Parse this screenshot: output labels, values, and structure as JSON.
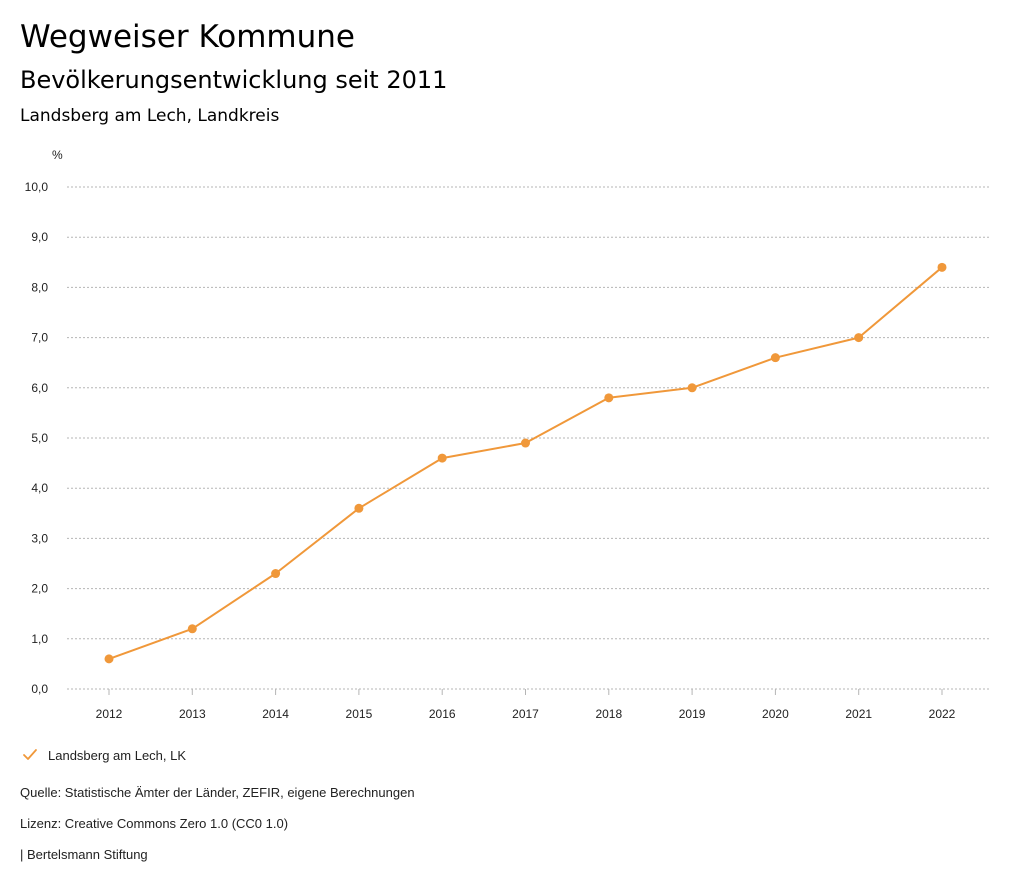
{
  "header": {
    "title": "Wegweiser Kommune",
    "subtitle": "Bevölkerungsentwicklung seit 2011",
    "region": "Landsberg am Lech, Landkreis"
  },
  "colors": {
    "series": "#f0983a",
    "gridline": "#b5b5b5",
    "axis_text": "#222222"
  },
  "chart_data": {
    "type": "line",
    "title": "Bevölkerungsentwicklung seit 2011",
    "ylabel": "%",
    "xlabel": "",
    "x": [
      "2012",
      "2013",
      "2014",
      "2015",
      "2016",
      "2017",
      "2018",
      "2019",
      "2020",
      "2021",
      "2022"
    ],
    "yticks": [
      "0,0",
      "1,0",
      "2,0",
      "3,0",
      "4,0",
      "5,0",
      "6,0",
      "7,0",
      "8,0",
      "9,0",
      "10,0"
    ],
    "ylim": [
      0,
      10
    ],
    "grid": true,
    "series": [
      {
        "name": "Landsberg am Lech, LK",
        "values": [
          0.6,
          1.2,
          2.3,
          3.6,
          4.6,
          4.9,
          5.8,
          6.0,
          6.6,
          7.0,
          8.4
        ]
      }
    ]
  },
  "legend": {
    "items": [
      {
        "label": "Landsberg am Lech, LK",
        "icon": "check-icon"
      }
    ]
  },
  "footer": {
    "source": "Quelle: Statistische Ämter der Länder, ZEFIR, eigene Berechnungen",
    "license": "Lizenz: Creative Commons Zero 1.0 (CC0 1.0)",
    "publisher": "| Bertelsmann Stiftung"
  }
}
